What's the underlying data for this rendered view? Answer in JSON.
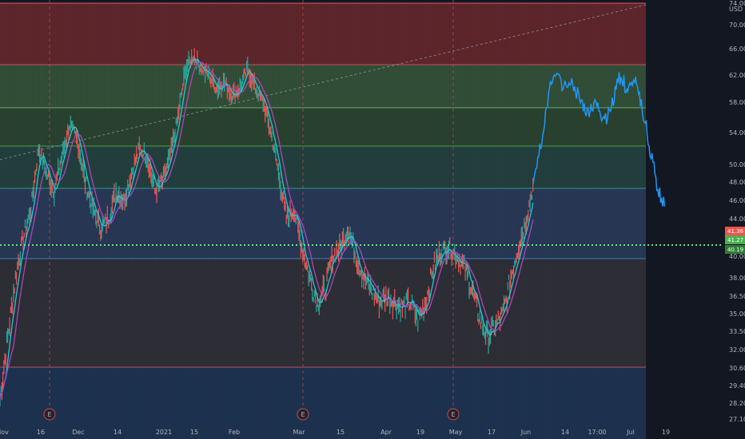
{
  "chart_data": {
    "type": "line",
    "title": "",
    "currency": "USD",
    "y_ticks": [
      "74.00",
      "70.00",
      "66.00",
      "62.00",
      "58.00",
      "54.00",
      "50.00",
      "48.00",
      "46.00",
      "44.00",
      "42.00",
      "40.00",
      "38.00",
      "36.50",
      "35.00",
      "33.50",
      "32.00",
      "30.60",
      "29.40",
      "28.20",
      "27.10"
    ],
    "x_ticks": [
      "Nov",
      "16",
      "Dec",
      "14",
      "2021",
      "15",
      "Feb",
      "Mar",
      "15",
      "Apr",
      "19",
      "May",
      "17",
      "Jun",
      "14",
      "17:00",
      "Jul",
      "19"
    ],
    "ylim": [
      27.1,
      74.0
    ],
    "price_labels": {
      "upper": "41.36",
      "middle": "41.27",
      "lower": "40.19"
    },
    "events": [
      {
        "label": "E",
        "x": "16"
      },
      {
        "label": "E",
        "x": "Mar"
      },
      {
        "label": "E",
        "x": "May"
      }
    ],
    "fib_levels": [
      66.0,
      62.8,
      58.2,
      55.0,
      50.4,
      41.0,
      30.6
    ],
    "series": [
      {
        "values": [
          28.5,
          33,
          38,
          42,
          45,
          52,
          49,
          47,
          51,
          55,
          53,
          48,
          45,
          43,
          44,
          47,
          46,
          49,
          52,
          51,
          47,
          48,
          51,
          56,
          63,
          65,
          63,
          62,
          60,
          61,
          59,
          60,
          63,
          60,
          58,
          54,
          49,
          44,
          45,
          41,
          38,
          36,
          37,
          40,
          41,
          43,
          40,
          38,
          37,
          36,
          36.5,
          36,
          35.5,
          36,
          34.5,
          36,
          39,
          40.5,
          41,
          40,
          39,
          37,
          34.5,
          33,
          34,
          35,
          38,
          41,
          44,
          48,
          53,
          60,
          62,
          60,
          61,
          58,
          57,
          58,
          56,
          57,
          62,
          60,
          61,
          57,
          52,
          47,
          45
        ]
      }
    ]
  }
}
